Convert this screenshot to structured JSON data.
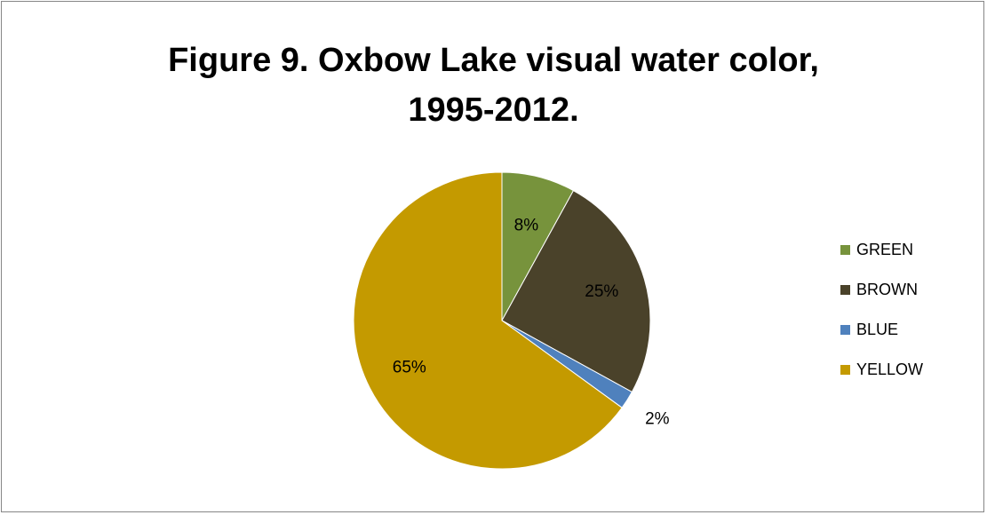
{
  "chart_data": {
    "type": "pie",
    "title_lines": [
      "Figure 9. Oxbow Lake visual water color,",
      "1995-2012."
    ],
    "categories": [
      "GREEN",
      "BROWN",
      "BLUE",
      "YELLOW"
    ],
    "values": [
      8,
      25,
      2,
      65
    ],
    "data_labels": [
      "8%",
      "25%",
      "2%",
      "65%"
    ],
    "colors": [
      "#77933c",
      "#4a422a",
      "#4f81bd",
      "#c49a00"
    ],
    "legend_position": "right",
    "start_angle_deg": 0,
    "direction": "clockwise"
  }
}
